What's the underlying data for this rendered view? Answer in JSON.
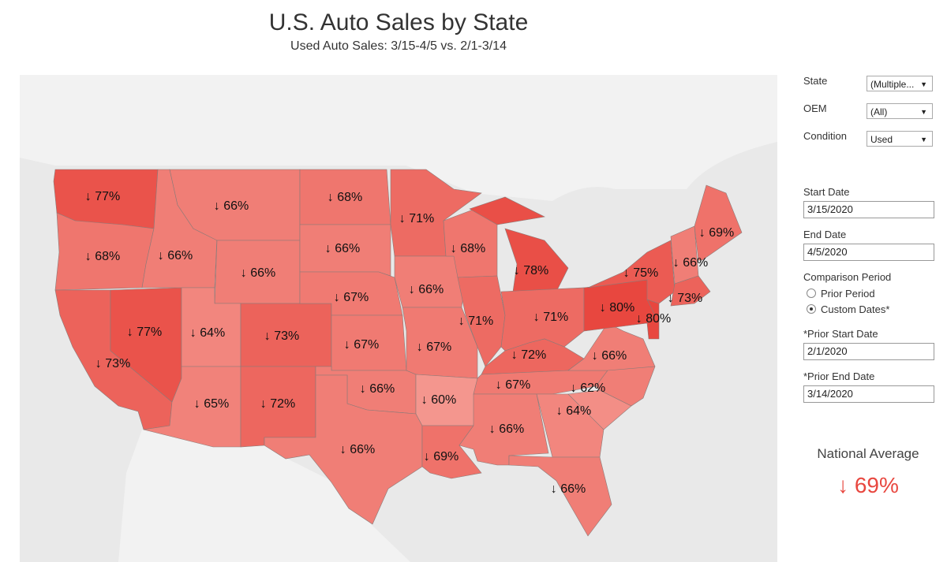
{
  "header": {
    "title": "U.S. Auto Sales by State",
    "subtitle": "Used Auto Sales: 3/15-4/5 vs. 2/1-3/14"
  },
  "chart_data": {
    "type": "choropleth",
    "values": [
      77,
      68,
      73,
      77,
      66,
      66,
      66,
      64,
      65,
      73,
      72,
      68,
      66,
      67,
      67,
      66,
      66,
      71,
      66,
      67,
      60,
      69,
      68,
      71,
      78,
      71,
      72,
      67,
      66,
      64,
      66,
      62,
      66,
      80,
      80,
      75,
      66,
      69,
      73
    ],
    "value_labels": [
      "↓ 77%",
      "↓ 68%",
      "↓ 73%",
      "↓ 77%",
      "↓ 66%",
      "↓ 66%",
      "↓ 66%",
      "↓ 64%",
      "↓ 65%",
      "↓ 73%",
      "↓ 72%",
      "↓ 68%",
      "↓ 66%",
      "↓ 67%",
      "↓ 67%",
      "↓ 66%",
      "↓ 66%",
      "↓ 71%",
      "↓ 66%",
      "↓ 67%",
      "↓ 60%",
      "↓ 69%",
      "↓ 68%",
      "↓ 71%",
      "↓ 78%",
      "↓ 71%",
      "↓ 72%",
      "↓ 67%",
      "↓ 66%",
      "↓ 64%",
      "↓ 66%",
      "↓ 62%",
      "↓ 66%",
      "↓ 80%",
      "↓ 80%",
      "↓ 75%",
      "↓ 66%",
      "↓ 69%",
      "↓ 73%"
    ],
    "color": "#e8473f"
  },
  "filters": {
    "state": {
      "label": "State",
      "value": "(Multiple..."
    },
    "oem": {
      "label": "OEM",
      "value": "(All)"
    },
    "condition": {
      "label": "Condition",
      "value": "Used"
    },
    "start_date": {
      "label": "Start Date",
      "value": "3/15/2020"
    },
    "end_date": {
      "label": "End Date",
      "value": "4/5/2020"
    },
    "comparison": {
      "label": "Comparison Period",
      "options": [
        "Prior Period",
        "Custom Dates*"
      ],
      "selected": 1
    },
    "prior_start": {
      "label": "*Prior Start Date",
      "value": "2/1/2020"
    },
    "prior_end": {
      "label": "*Prior End Date",
      "value": "3/14/2020"
    }
  },
  "national_average": {
    "title": "National Average",
    "value": 69,
    "label": "↓ 69%"
  }
}
